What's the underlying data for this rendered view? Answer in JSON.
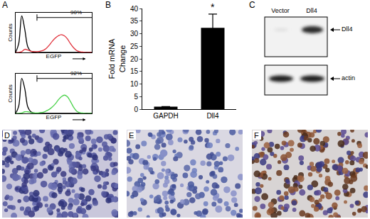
{
  "chart_data": [
    {
      "panel": "A",
      "type": "line",
      "xlabel": "EGFP",
      "ylabel": "Counts",
      "xlim": [
        0,
        100
      ],
      "ylim": [
        0,
        100
      ],
      "tick_labels": false,
      "x": [
        0,
        4,
        8,
        12,
        16,
        20,
        24,
        28,
        32,
        36,
        40,
        44,
        48,
        52,
        56,
        60,
        64,
        68,
        72,
        76,
        80,
        84,
        88,
        92,
        96,
        100
      ],
      "series": [
        {
          "color": "#000000",
          "values": [
            0,
            22,
            92,
            58,
            14,
            3,
            1,
            0,
            0,
            0,
            0,
            0,
            0,
            0,
            0,
            0,
            0,
            0,
            0,
            0,
            0,
            0,
            0,
            0,
            0,
            0
          ]
        },
        {
          "color": "#e0303a",
          "values": [
            0,
            0,
            2,
            8,
            6,
            3,
            2,
            2,
            3,
            5,
            10,
            18,
            28,
            36,
            42,
            45,
            42,
            34,
            22,
            12,
            5,
            2,
            1,
            0,
            0,
            0
          ]
        }
      ],
      "gate": {
        "range": [
          28,
          100
        ],
        "label": "90%"
      }
    },
    {
      "panel": "A",
      "type": "line",
      "xlabel": "EGFP",
      "ylabel": "Counts",
      "xlim": [
        0,
        100
      ],
      "ylim": [
        0,
        100
      ],
      "tick_labels": false,
      "x": [
        0,
        4,
        8,
        12,
        16,
        20,
        24,
        28,
        32,
        36,
        40,
        44,
        48,
        52,
        56,
        60,
        64,
        68,
        72,
        76,
        80,
        84,
        88,
        92,
        96,
        100
      ],
      "series": [
        {
          "color": "#000000",
          "values": [
            0,
            18,
            88,
            62,
            16,
            4,
            1,
            0,
            0,
            0,
            0,
            0,
            0,
            0,
            0,
            0,
            0,
            0,
            0,
            0,
            0,
            0,
            0,
            0,
            0,
            0
          ]
        },
        {
          "color": "#4cd24c",
          "values": [
            0,
            0,
            1,
            4,
            4,
            2,
            1,
            1,
            2,
            3,
            6,
            10,
            16,
            24,
            34,
            42,
            46,
            42,
            30,
            16,
            6,
            2,
            1,
            0,
            0,
            0
          ]
        }
      ],
      "gate": {
        "range": [
          28,
          100
        ],
        "label": "92%"
      }
    },
    {
      "panel": "B",
      "type": "bar",
      "categories": [
        "GAPDH",
        "Dll4"
      ],
      "values": [
        1,
        32.3
      ],
      "errors": [
        0,
        5.5
      ],
      "color": "#000000",
      "ylabel": "Fold mRNA Change",
      "ylim": [
        0,
        40
      ],
      "yticks": [
        0,
        5,
        10,
        15,
        20,
        25,
        30,
        35,
        40
      ],
      "annotations": [
        {
          "category": "Dll4",
          "text": "*"
        }
      ]
    }
  ],
  "blot": {
    "panel": "C",
    "lanes": [
      "Vector",
      "Dll4"
    ],
    "bands": [
      "Dll4",
      "actin"
    ]
  },
  "images": {
    "panels": [
      "D",
      "E",
      "F"
    ]
  }
}
